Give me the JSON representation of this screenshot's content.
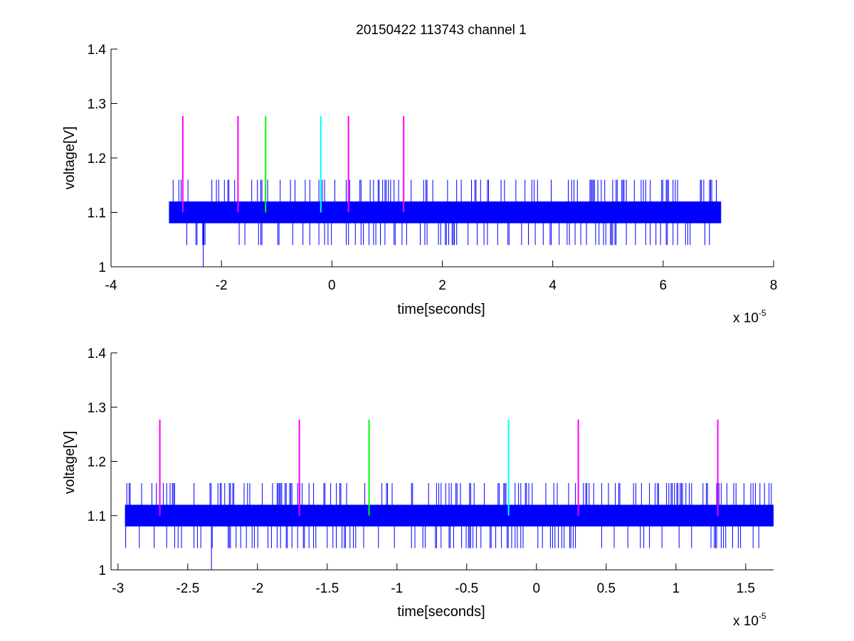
{
  "figure": {
    "title": "20150422 113743 channel 1",
    "background": "#ffffff"
  },
  "colors": {
    "signal": "#0000ff",
    "marker_magenta": "#ff00ff",
    "marker_green": "#00ff00",
    "marker_cyan": "#00ffff",
    "axes": "#000000"
  },
  "chart_data": [
    {
      "type": "line",
      "title": "20150422 113743 channel 1",
      "xlabel": "time[seconds]",
      "ylabel": "voltage[V]",
      "x_scale_label": "x 10",
      "x_scale_exponent": "-5",
      "xlim": [
        -4,
        8
      ],
      "ylim": [
        1,
        1.4
      ],
      "xticks": [
        -4,
        -2,
        0,
        2,
        4,
        6,
        8
      ],
      "xtick_labels": [
        "-4",
        "-2",
        "0",
        "2",
        "4",
        "6",
        "8"
      ],
      "yticks": [
        1,
        1.1,
        1.2,
        1.3,
        1.4
      ],
      "ytick_labels": [
        "1",
        "1.1",
        "1.2",
        "1.3",
        "1.4"
      ],
      "grid": false,
      "series": [
        {
          "color": "#0000ff",
          "x_range": [
            -2.95,
            7.05
          ],
          "baseline_band": [
            1.08,
            1.12
          ],
          "spike_high": 1.16,
          "spike_low": 1.04,
          "min_dip": [
            -2.33,
            1.0
          ]
        }
      ],
      "markers": [
        {
          "x": -2.7,
          "y_range": [
            1.1,
            1.277
          ],
          "color": "#ff00ff"
        },
        {
          "x": -1.7,
          "y_range": [
            1.1,
            1.277
          ],
          "color": "#ff00ff"
        },
        {
          "x": -1.2,
          "y_range": [
            1.1,
            1.277
          ],
          "color": "#00ff00"
        },
        {
          "x": -0.2,
          "y_range": [
            1.1,
            1.277
          ],
          "color": "#00ffff"
        },
        {
          "x": 0.3,
          "y_range": [
            1.1,
            1.277
          ],
          "color": "#ff00ff"
        },
        {
          "x": 1.3,
          "y_range": [
            1.1,
            1.277
          ],
          "color": "#ff00ff"
        }
      ]
    },
    {
      "type": "line",
      "xlabel": "time[seconds]",
      "ylabel": "voltage[V]",
      "x_scale_label": "x 10",
      "x_scale_exponent": "-5",
      "xlim": [
        -3.05,
        1.7
      ],
      "ylim": [
        1,
        1.4
      ],
      "xticks": [
        -3,
        -2.5,
        -2,
        -1.5,
        -1,
        -0.5,
        0,
        0.5,
        1,
        1.5
      ],
      "xtick_labels": [
        "-3",
        "-2.5",
        "-2",
        "-1.5",
        "-1",
        "-0.5",
        "0",
        "0.5",
        "1",
        "1.5"
      ],
      "yticks": [
        1,
        1.1,
        1.2,
        1.3,
        1.4
      ],
      "ytick_labels": [
        "1",
        "1.1",
        "1.2",
        "1.3",
        "1.4"
      ],
      "grid": false,
      "series": [
        {
          "color": "#0000ff",
          "x_range": [
            -2.95,
            1.7
          ],
          "baseline_band": [
            1.08,
            1.12
          ],
          "spike_high": 1.16,
          "spike_low": 1.04,
          "min_dip": [
            -2.33,
            1.0
          ]
        }
      ],
      "markers": [
        {
          "x": -2.7,
          "y_range": [
            1.1,
            1.277
          ],
          "color": "#ff00ff"
        },
        {
          "x": -1.7,
          "y_range": [
            1.1,
            1.277
          ],
          "color": "#ff00ff"
        },
        {
          "x": -1.2,
          "y_range": [
            1.1,
            1.277
          ],
          "color": "#00ff00"
        },
        {
          "x": -0.2,
          "y_range": [
            1.1,
            1.277
          ],
          "color": "#00ffff"
        },
        {
          "x": 0.3,
          "y_range": [
            1.1,
            1.277
          ],
          "color": "#ff00ff"
        },
        {
          "x": 1.3,
          "y_range": [
            1.1,
            1.277
          ],
          "color": "#ff00ff"
        }
      ]
    }
  ]
}
